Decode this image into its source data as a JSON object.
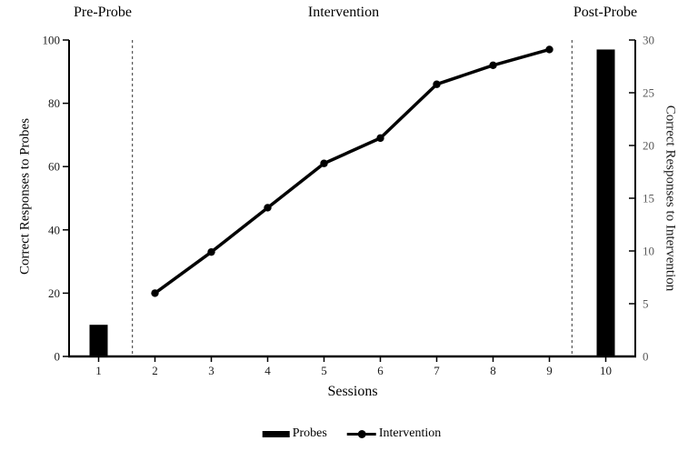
{
  "chart_data": {
    "type": "bar",
    "subtype": "combo-bar-line-dual-axis",
    "title": "",
    "xlabel": "Sessions",
    "ylabel_left": "Correct Responses to Probes",
    "ylabel_right": "Correct Responses to Intervention",
    "x_sessions": [
      1,
      2,
      3,
      4,
      5,
      6,
      7,
      8,
      9,
      10
    ],
    "axis_left": {
      "min": 0,
      "max": 100,
      "ticks": [
        0,
        20,
        40,
        60,
        80,
        100
      ]
    },
    "axis_right": {
      "min": 0,
      "max": 30,
      "ticks": [
        0,
        5,
        10,
        15,
        20,
        25,
        30
      ]
    },
    "phase_labels": [
      {
        "text": "Pre-Probe"
      },
      {
        "text": "Intervention"
      },
      {
        "text": "Post-Probe"
      }
    ],
    "phase_divider_sessions": [
      1.6,
      9.4
    ],
    "series": [
      {
        "name": "Probes",
        "type": "bar",
        "axis": "left",
        "sessions": [
          1,
          10
        ],
        "values": [
          10,
          97
        ],
        "color": "#000000"
      },
      {
        "name": "Intervention",
        "type": "line",
        "axis": "left",
        "sessions": [
          2,
          3,
          4,
          5,
          6,
          7,
          8,
          9
        ],
        "values": [
          20,
          33,
          47,
          61,
          69,
          86,
          92,
          97
        ],
        "right_axis_readings": [
          6,
          10,
          14,
          18,
          21,
          26,
          28,
          29
        ],
        "color": "#000000"
      }
    ],
    "legend": {
      "position": "bottom-center",
      "entries": [
        "Probes",
        "Intervention"
      ]
    },
    "grid": false,
    "colors": {
      "series": "#000000",
      "axis_lines": "#000000",
      "left_tick_labels": "#1a1a1a",
      "right_tick_labels": "#595959",
      "phase_divider": "#333333"
    }
  }
}
